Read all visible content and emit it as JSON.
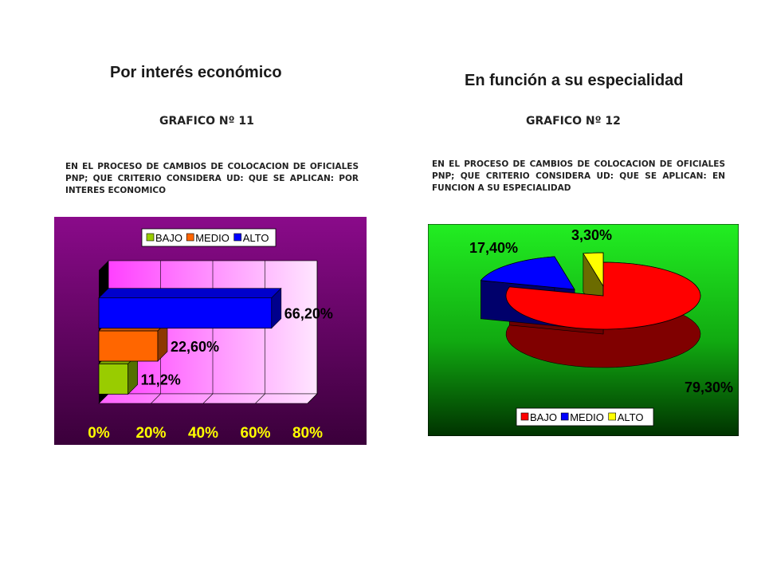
{
  "headings": {
    "left": "Por interés económico",
    "right": "En función a su especialidad"
  },
  "chart_data": [
    {
      "type": "bar",
      "orientation": "horizontal",
      "title": "GRAFICO Nº 11",
      "subtitle": "EN EL PROCESO DE CAMBIOS DE COLOCACION DE OFICIALES PNP; QUE CRITERIO CONSIDERA UD: QUE SE APLICAN: POR INTERES ECONOMICO",
      "categories": [
        "BAJO",
        "MEDIO",
        "ALTO"
      ],
      "values": [
        11.2,
        22.6,
        66.2
      ],
      "data_labels": [
        "11,2%",
        "22,60%",
        "66,20%"
      ],
      "xlim": [
        0,
        80
      ],
      "x_tick_labels": [
        "0%",
        "20%",
        "40%",
        "60%",
        "80%"
      ],
      "legend": {
        "entries": [
          "BAJO",
          "MEDIO",
          "ALTO"
        ],
        "placement": "top"
      },
      "colors": {
        "BAJO": "#99cc00",
        "MEDIO": "#ff6600",
        "ALTO": "#0000ff",
        "background": "#800080",
        "plot": "#ffccff"
      },
      "grid": true
    },
    {
      "type": "pie",
      "title": "GRAFICO Nº 12",
      "subtitle": "EN EL PROCESO DE CAMBIOS DE COLOCACION DE OFICIALES PNP; QUE CRITERIO CONSIDERA UD: QUE SE APLICAN: EN FUNCION A SU ESPECIALIDAD",
      "categories": [
        "BAJO",
        "MEDIO",
        "ALTO"
      ],
      "values": [
        79.3,
        17.4,
        3.3
      ],
      "data_labels": [
        "79,30%",
        "17,40%",
        "3,30%"
      ],
      "legend": {
        "entries": [
          "BAJO",
          "MEDIO",
          "ALTO"
        ],
        "placement": "bottom"
      },
      "colors": {
        "BAJO": "#ff0000",
        "MEDIO": "#0000ff",
        "ALTO": "#ffff00",
        "background": "#00cc00"
      }
    }
  ]
}
